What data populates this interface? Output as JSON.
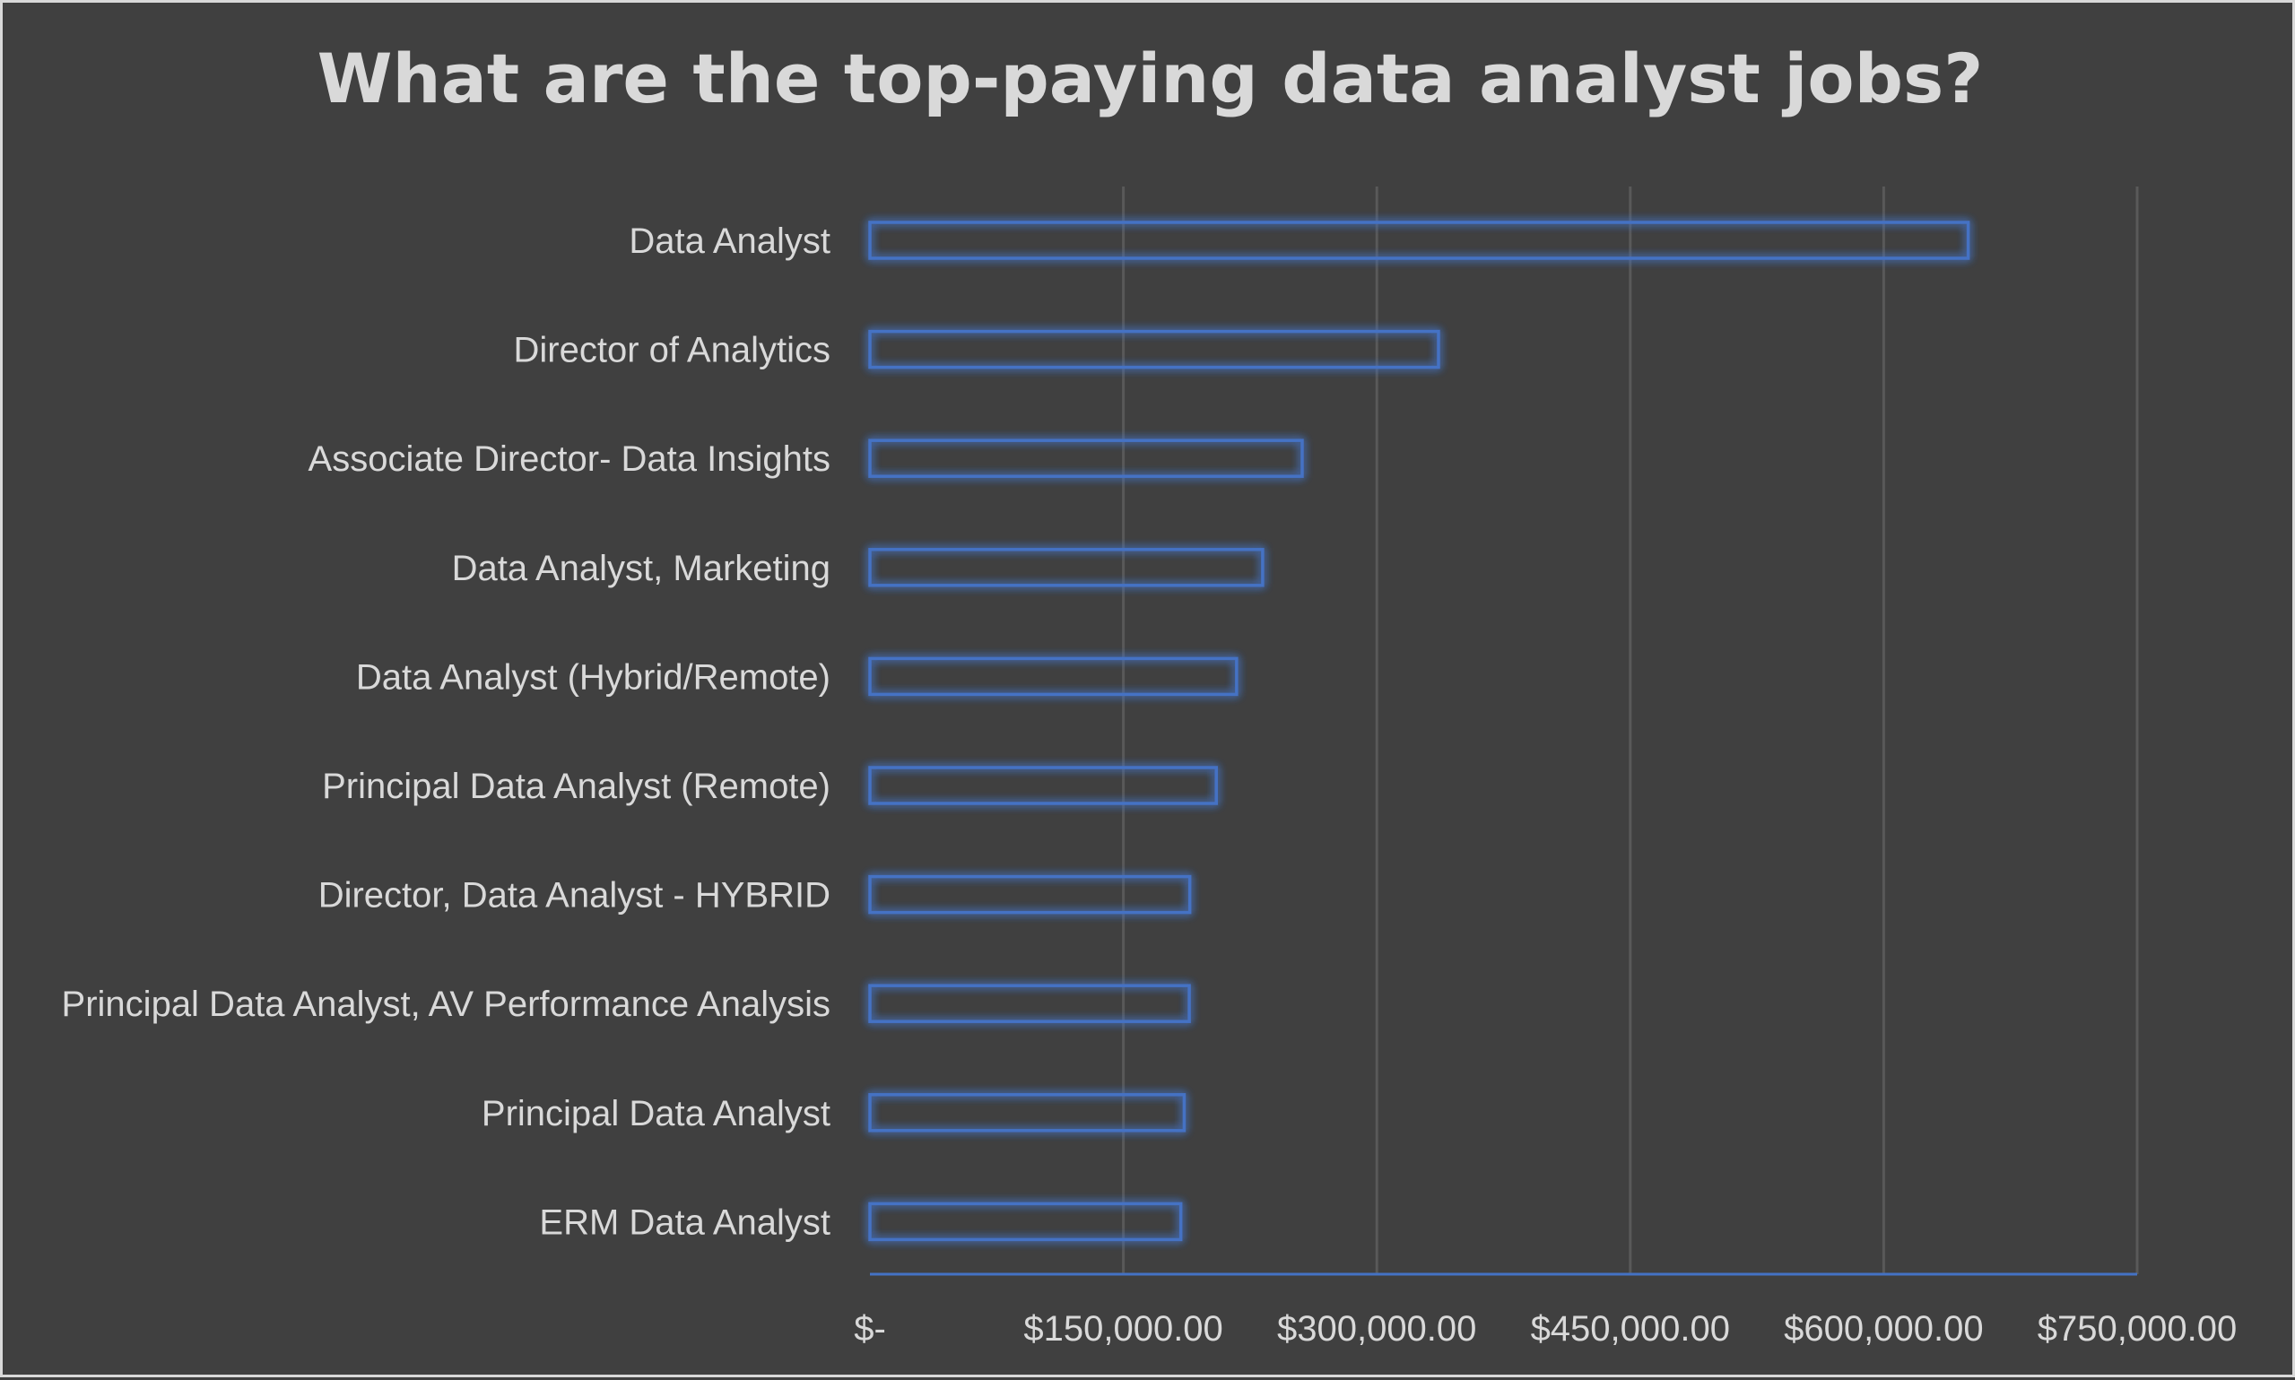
{
  "chart_data": {
    "type": "bar",
    "orientation": "horizontal",
    "title": "What are the top-paying data analyst jobs?",
    "xlabel": "",
    "ylabel": "",
    "categories": [
      "Data Analyst",
      "Director of Analytics",
      "Associate Director- Data Insights",
      "Data Analyst, Marketing",
      "Data Analyst (Hybrid/Remote)",
      "Principal Data Analyst (Remote)",
      "Director, Data Analyst - HYBRID",
      "Principal Data Analyst, AV Performance Analysis",
      "Principal Data Analyst",
      "ERM Data Analyst"
    ],
    "values": [
      650000,
      336500,
      255829.5,
      232423,
      217000,
      205000,
      189309,
      189000,
      186000,
      184000
    ],
    "xlim": [
      0,
      750000
    ],
    "ticks": [
      0,
      150000,
      300000,
      450000,
      600000,
      750000
    ],
    "tick_labels": [
      "$-",
      "$150,000.00",
      "$300,000.00",
      "$450,000.00",
      "$600,000.00",
      "$750,000.00"
    ],
    "grid": "vertical",
    "colors": {
      "background": "#404040",
      "bar_outline": "#4472c4",
      "bar_glow": "#4472c4",
      "text": "#d9d9d9",
      "gridline": "#595959"
    }
  }
}
